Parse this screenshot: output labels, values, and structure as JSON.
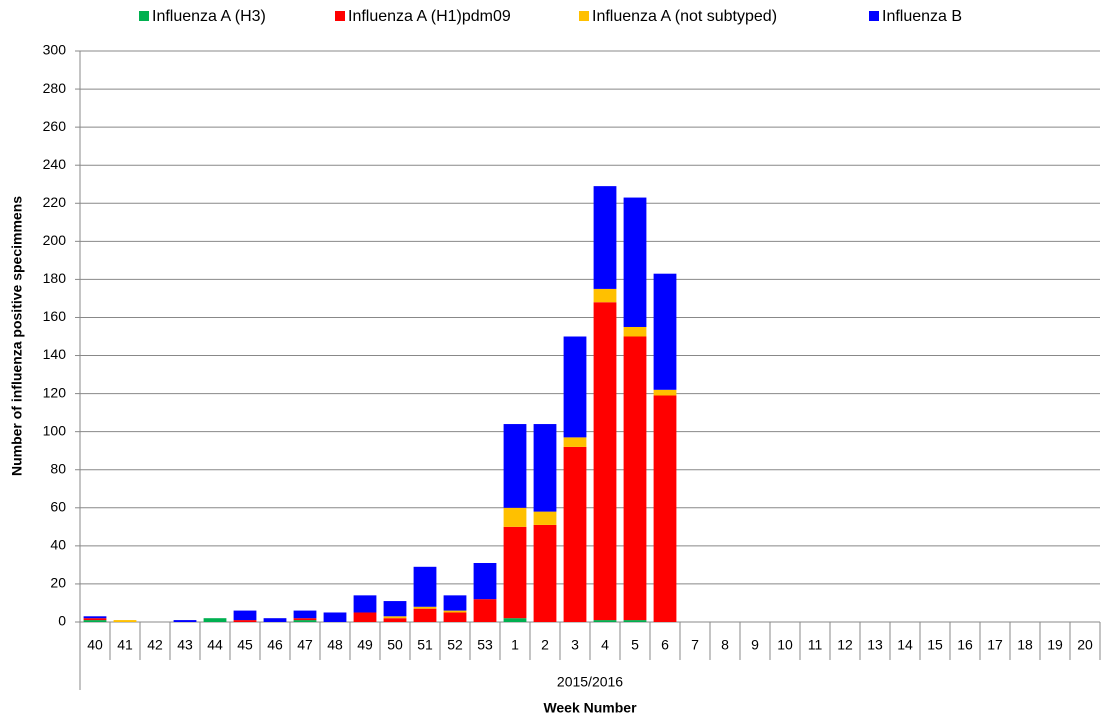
{
  "chart_data": {
    "type": "stacked_bar",
    "x_group_label": "2015/2016",
    "x_label": "Week Number",
    "y_label": "Number of influenza positive specimmens",
    "categories": [
      "40",
      "41",
      "42",
      "43",
      "44",
      "45",
      "46",
      "47",
      "48",
      "49",
      "50",
      "51",
      "52",
      "53",
      "1",
      "2",
      "3",
      "4",
      "5",
      "6",
      "7",
      "8",
      "9",
      "10",
      "11",
      "12",
      "13",
      "14",
      "15",
      "16",
      "17",
      "18",
      "19",
      "20"
    ],
    "series": [
      {
        "name": "Influenza A (H3)",
        "color": "#00b050",
        "values": [
          1,
          0,
          0,
          0,
          2,
          0,
          0,
          1,
          0,
          0,
          0,
          0,
          0,
          0,
          2,
          0,
          0,
          1,
          1,
          0,
          0,
          0,
          0,
          0,
          0,
          0,
          0,
          0,
          0,
          0,
          0,
          0,
          0,
          0
        ]
      },
      {
        "name": "Influenza A (H1)pdm09",
        "color": "#ff0000",
        "values": [
          1,
          0,
          0,
          0,
          0,
          1,
          0,
          1,
          0,
          5,
          2,
          7,
          5,
          12,
          48,
          51,
          92,
          167,
          149,
          119,
          0,
          0,
          0,
          0,
          0,
          0,
          0,
          0,
          0,
          0,
          0,
          0,
          0,
          0
        ]
      },
      {
        "name": "Influenza A (not subtyped)",
        "color": "#ffc000",
        "values": [
          0,
          1,
          0,
          0,
          0,
          0,
          0,
          0,
          0,
          0,
          1,
          1,
          1,
          0,
          10,
          7,
          5,
          7,
          5,
          3,
          0,
          0,
          0,
          0,
          0,
          0,
          0,
          0,
          0,
          0,
          0,
          0,
          0,
          0
        ]
      },
      {
        "name": "Influenza B",
        "color": "#0000ff",
        "values": [
          1,
          0,
          0,
          1,
          0,
          5,
          2,
          4,
          5,
          9,
          8,
          21,
          8,
          19,
          44,
          46,
          53,
          54,
          68,
          61,
          0,
          0,
          0,
          0,
          0,
          0,
          0,
          0,
          0,
          0,
          0,
          0,
          0,
          0
        ]
      }
    ],
    "ylim": [
      0,
      300
    ],
    "yticks": [
      0,
      20,
      40,
      60,
      80,
      100,
      120,
      140,
      160,
      180,
      200,
      220,
      240,
      260,
      280,
      300
    ],
    "grid": true,
    "legend": "top"
  }
}
